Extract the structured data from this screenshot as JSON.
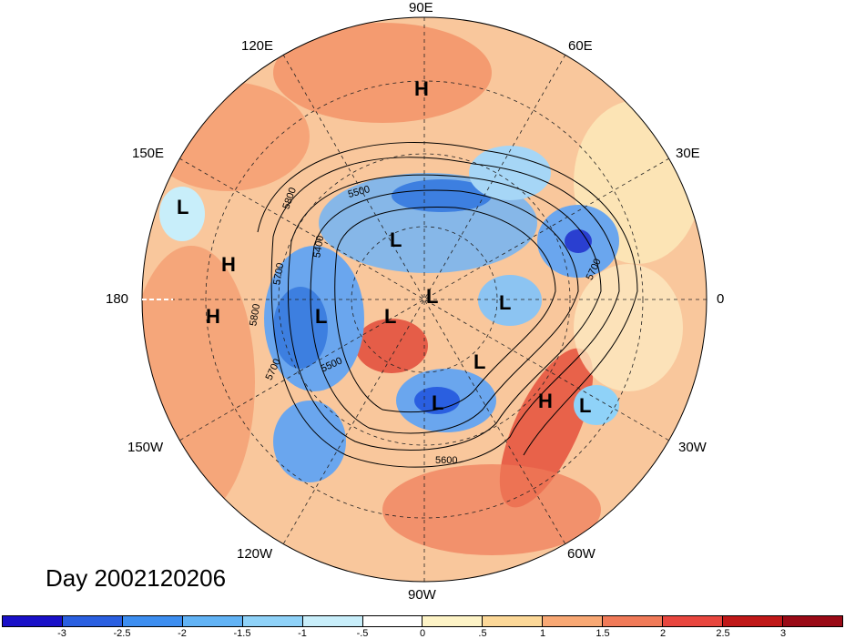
{
  "longitude_labels": {
    "e90": "90E",
    "e120": "120E",
    "e60": "60E",
    "e150": "150E",
    "e30": "30E",
    "l180": "180",
    "l0": "0",
    "w150": "150W",
    "w30": "30W",
    "w120": "120W",
    "w60": "60W",
    "w90": "90W"
  },
  "pressure_centers": [
    "H",
    "L",
    "H",
    "H",
    "L",
    "L",
    "L",
    "L",
    "L",
    "L",
    "L",
    "H",
    "L"
  ],
  "contour_labels": [
    "5800",
    "5500",
    "5400",
    "5700",
    "5800",
    "5700",
    "5500",
    "5600",
    "5700"
  ],
  "title": "Day 2002120206",
  "colorbar": {
    "colors": [
      "#1a10c8",
      "#2a5fe0",
      "#3d8ef0",
      "#62b3f5",
      "#8fd2f8",
      "#c8eefa",
      "#ffffff",
      "#fdf3c6",
      "#fcd898",
      "#f8a874",
      "#f07a58",
      "#e8463e",
      "#c01818",
      "#9a0a16"
    ],
    "ticks": [
      "-3",
      "-2.5",
      "-2",
      "-1.5",
      "-1",
      "-.5",
      "0",
      ".5",
      "1",
      "1.5",
      "2",
      "2.5",
      "3"
    ]
  },
  "colors": {
    "ocean_warm": "#f7b98a",
    "land_warm": "#f9cba0",
    "cold": "#7fb6ec"
  }
}
